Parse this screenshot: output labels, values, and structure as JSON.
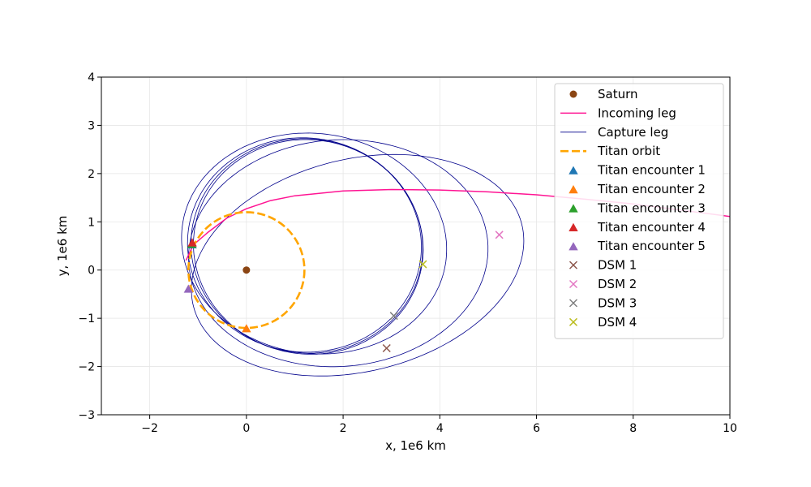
{
  "chart_data": {
    "type": "scatter",
    "xlabel": "x, 1e6 km",
    "ylabel": "y, 1e6 km",
    "xlim": [
      -3,
      10
    ],
    "ylim": [
      -3,
      4
    ],
    "x_ticks": [
      -2,
      0,
      2,
      4,
      6,
      8,
      10
    ],
    "y_ticks": [
      -3,
      -2,
      -1,
      0,
      1,
      2,
      3,
      4
    ],
    "x_tick_labels": [
      "−2",
      "0",
      "2",
      "4",
      "6",
      "8",
      "10"
    ],
    "y_tick_labels": [
      "−3",
      "−2",
      "−1",
      "0",
      "1",
      "2",
      "3",
      "4"
    ],
    "grid": true,
    "legend_position": "top-right",
    "saturn": {
      "name": "Saturn",
      "x": 0,
      "y": 0,
      "color": "#8b4513"
    },
    "titan_orbit": {
      "name": "Titan orbit",
      "radius": 1.2,
      "color": "#ffa500"
    },
    "incoming_leg": {
      "name": "Incoming leg",
      "color": "#ff1493",
      "points": [
        [
          10.0,
          1.11
        ],
        [
          9.0,
          1.24
        ],
        [
          8.0,
          1.37
        ],
        [
          7.0,
          1.47
        ],
        [
          6.0,
          1.56
        ],
        [
          5.0,
          1.62
        ],
        [
          4.0,
          1.66
        ],
        [
          3.0,
          1.67
        ],
        [
          2.0,
          1.64
        ],
        [
          1.0,
          1.54
        ],
        [
          0.5,
          1.44
        ],
        [
          0.0,
          1.27
        ],
        [
          -0.4,
          1.08
        ],
        [
          -0.8,
          0.78
        ],
        [
          -1.1,
          0.52
        ],
        [
          -1.25,
          0.2
        ]
      ]
    },
    "capture_leg": {
      "name": "Capture leg",
      "color": "#00008b",
      "orbits": [
        {
          "cx": 1.25,
          "cy": 0.5,
          "rx": 2.4,
          "ry": 2.22,
          "rot": -8
        },
        {
          "cx": 1.2,
          "cy": 0.52,
          "rx": 2.42,
          "ry": 2.22,
          "rot": -6
        },
        {
          "cx": 1.28,
          "cy": 0.48,
          "rx": 2.38,
          "ry": 2.22,
          "rot": -10
        },
        {
          "cx": 1.4,
          "cy": 0.55,
          "rx": 2.75,
          "ry": 2.28,
          "rot": -8
        },
        {
          "cx": 2.3,
          "cy": 0.1,
          "rx": 3.5,
          "ry": 2.2,
          "rot": 14
        },
        {
          "cx": 1.9,
          "cy": 0.35,
          "rx": 3.1,
          "ry": 2.35,
          "rot": 4
        }
      ]
    },
    "titan_encounters": [
      {
        "name": "Titan encounter 1",
        "x": -1.12,
        "y": 0.52,
        "color": "#1f77b4"
      },
      {
        "name": "Titan encounter 2",
        "x": 0.0,
        "y": -1.22,
        "color": "#ff7f0e"
      },
      {
        "name": "Titan encounter 3",
        "x": -1.13,
        "y": 0.53,
        "color": "#2ca02c"
      },
      {
        "name": "Titan encounter 4",
        "x": -1.12,
        "y": 0.56,
        "color": "#d62728"
      },
      {
        "name": "Titan encounter 5",
        "x": -1.2,
        "y": -0.4,
        "color": "#9467bd"
      }
    ],
    "dsms": [
      {
        "name": "DSM 1",
        "x": 2.9,
        "y": -1.62,
        "color": "#8c564b"
      },
      {
        "name": "DSM 2",
        "x": 5.23,
        "y": 0.73,
        "color": "#e377c2"
      },
      {
        "name": "DSM 3",
        "x": 3.05,
        "y": -0.95,
        "color": "#7f7f7f"
      },
      {
        "name": "DSM 4",
        "x": 3.65,
        "y": 0.12,
        "color": "#bcbd22"
      }
    ]
  }
}
